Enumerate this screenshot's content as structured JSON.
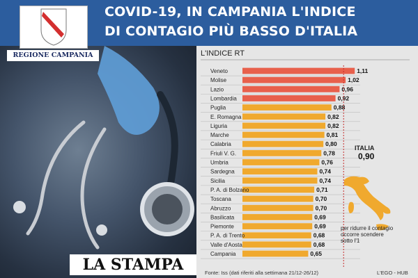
{
  "header": {
    "line1": "COVID-19, IN CAMPANIA L'INDICE",
    "line2": "DI CONTAGIO PIÙ BASSO D'ITALIA",
    "background": "#2c5d9e"
  },
  "emblem_label": "REGIONE CAMPANIA",
  "masthead": "LA STAMPA",
  "chart_data": {
    "type": "bar",
    "orientation": "horizontal",
    "title": "L'INDICE RT",
    "categories": [
      "Veneto",
      "Molise",
      "Lazio",
      "Lombardia",
      "Puglia",
      "E. Romagna",
      "Liguria",
      "Marche",
      "Calabria",
      "Friuli V. G.",
      "Umbria",
      "Sardegna",
      "Sicilia",
      "P. A. di Bolzano",
      "Toscana",
      "Abruzzo",
      "Basilicata",
      "Piemonte",
      "P. A. di Trento",
      "Valle d'Aosta",
      "Campania"
    ],
    "values": [
      1.11,
      1.02,
      0.96,
      0.92,
      0.88,
      0.82,
      0.82,
      0.81,
      0.8,
      0.78,
      0.76,
      0.74,
      0.74,
      0.71,
      0.7,
      0.7,
      0.69,
      0.69,
      0.68,
      0.68,
      0.65
    ],
    "value_labels": [
      "1,11",
      "1,02",
      "0,96",
      "0,92",
      "0,88",
      "0,82",
      "0,82",
      "0,81",
      "0,80",
      "0,78",
      "0,76",
      "0,74",
      "0,74",
      "0,71",
      "0,70",
      "0,70",
      "0,69",
      "0,69",
      "0,68",
      "0,68",
      "0,65"
    ],
    "xlim": [
      0,
      1.15
    ],
    "reference_line": 1.0,
    "colors": {
      "above_threshold": "#e8604c",
      "below_threshold": "#f0a92e",
      "threshold": 0.9,
      "reference": "#c62828"
    },
    "grid": false
  },
  "callout": {
    "label": "ITALIA",
    "value": "0,90"
  },
  "note": "per ridurre il contagio occorre scendere sotto l'1",
  "source": "Fonte: Iss (dati riferiti alla settimana 21/12-26/12)",
  "credit": "L'EGO - HUB"
}
